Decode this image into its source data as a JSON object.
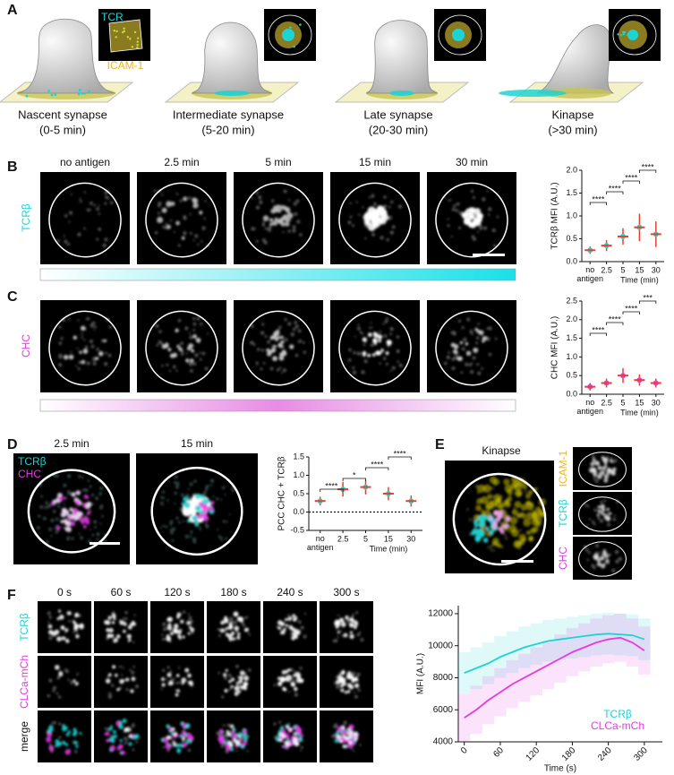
{
  "panel_a": {
    "label": "A",
    "inset_labels": [
      "TCR",
      "ICAM-1"
    ],
    "stages": [
      {
        "name": "Nascent synapse",
        "time": "(0-5 min)"
      },
      {
        "name": "Intermediate synapse",
        "time": "(5-20 min)"
      },
      {
        "name": "Late synapse",
        "time": "(20-30 min)"
      },
      {
        "name": "Kinapse",
        "time": "(>30 min)"
      }
    ]
  },
  "panel_b": {
    "label": "B",
    "row_label": "TCRβ",
    "columns": [
      "no antigen",
      "2.5 min",
      "5 min",
      "15 min",
      "30 min"
    ]
  },
  "panel_c": {
    "label": "C",
    "row_label": "CHC"
  },
  "panel_d": {
    "label": "D",
    "columns": [
      "2.5 min",
      "15 min"
    ],
    "channels": [
      "TCRβ",
      "CHC"
    ]
  },
  "panel_e": {
    "label": "E",
    "title": "Kinapse",
    "channels": [
      "ICAM-1",
      "TCRβ",
      "CHC"
    ]
  },
  "panel_f": {
    "label": "F",
    "columns": [
      "0 s",
      "60 s",
      "120 s",
      "180 s",
      "240 s",
      "300 s"
    ],
    "rows": [
      "TCRβ",
      "CLCa-mCh",
      "merge"
    ]
  },
  "chart_data": [
    {
      "type": "dot",
      "y_label": "TCRβ MFI (A.U.)",
      "x_label": "Time (min)",
      "categories": [
        "no antigen",
        "2.5",
        "5",
        "15",
        "30"
      ],
      "values": [
        0.25,
        0.35,
        0.55,
        0.75,
        0.6
      ],
      "errors": [
        0.08,
        0.12,
        0.18,
        0.3,
        0.28
      ],
      "color": "#e8402c",
      "point_color": "#1ed3d3",
      "ylim": [
        0,
        2
      ],
      "yticks": [
        {
          "value": 0,
          "label": "0.0"
        },
        {
          "value": 0.5,
          "label": "0.5"
        },
        {
          "value": 1,
          "label": "1.0"
        },
        {
          "value": 1.5,
          "label": "1.5"
        },
        {
          "value": 2,
          "label": "2.0"
        }
      ],
      "significance": [
        "****",
        "****",
        "****",
        "****"
      ]
    },
    {
      "type": "dot",
      "y_label": "CHC MFI (A.U.)",
      "x_label": "Time (min)",
      "categories": [
        "no antigen",
        "2.5",
        "5",
        "15",
        "30"
      ],
      "values": [
        0.2,
        0.3,
        0.5,
        0.38,
        0.3
      ],
      "errors": [
        0.1,
        0.12,
        0.2,
        0.15,
        0.12
      ],
      "color": "#e8402c",
      "point_color": "#e33be0",
      "ylim": [
        0,
        2.5
      ],
      "yticks": [
        {
          "value": 0,
          "label": "0.0"
        },
        {
          "value": 0.5,
          "label": "0.5"
        },
        {
          "value": 1,
          "label": "1.0"
        },
        {
          "value": 1.5,
          "label": "1.5"
        },
        {
          "value": 2,
          "label": "2.0"
        },
        {
          "value": 2.5,
          "label": "2.5"
        }
      ],
      "significance": [
        "****",
        "****",
        "****",
        "***"
      ]
    },
    {
      "type": "dot",
      "y_label": "PCC CHC + TCRβ",
      "x_label": "Time (min)",
      "categories": [
        "no antigen",
        "2.5",
        "5",
        "15",
        "30"
      ],
      "values": [
        0.3,
        0.62,
        0.68,
        0.5,
        0.3
      ],
      "errors": [
        0.12,
        0.2,
        0.2,
        0.18,
        0.15
      ],
      "color": "#e8402c",
      "point_color": "#1ed3d3",
      "zero_line": true,
      "ylim": [
        -0.5,
        1.5
      ],
      "yticks": [
        {
          "value": -0.5,
          "label": "-0.5"
        },
        {
          "value": 0,
          "label": "0.0"
        },
        {
          "value": 0.5,
          "label": "0.5"
        },
        {
          "value": 1,
          "label": "1.0"
        },
        {
          "value": 1.5,
          "label": "1.5"
        }
      ],
      "significance": [
        "****",
        "*",
        "****",
        "****"
      ]
    },
    {
      "type": "line",
      "y_label": "MFI (A.U.)",
      "x_label": "Time (s)",
      "legend": "lower right",
      "x": [
        0,
        20,
        40,
        60,
        80,
        100,
        120,
        140,
        160,
        180,
        200,
        220,
        240,
        260,
        280,
        300
      ],
      "xlim": [
        -10,
        330
      ],
      "xticks": [
        0,
        60,
        120,
        180,
        240,
        300
      ],
      "ylim": [
        4000,
        12500
      ],
      "yticks": [
        4000,
        6000,
        8000,
        10000,
        12000
      ],
      "series": [
        {
          "name": "TCRβ",
          "color": "#1ed3d3",
          "values": [
            8300,
            8600,
            8900,
            9300,
            9600,
            9900,
            10100,
            10300,
            10400,
            10500,
            10600,
            10700,
            10750,
            10700,
            10650,
            10400
          ],
          "errors": [
            1300,
            1300,
            1300,
            1300,
            1300,
            1300,
            1300,
            1300,
            1300,
            1300,
            1300,
            1300,
            1300,
            1300,
            1300,
            1300
          ]
        },
        {
          "name": "CLCa-mCh",
          "color": "#e33be0",
          "values": [
            5500,
            6000,
            6600,
            7100,
            7600,
            8000,
            8400,
            8800,
            9200,
            9600,
            9900,
            10200,
            10400,
            10500,
            10200,
            9700
          ],
          "errors": [
            1500,
            1500,
            1500,
            1500,
            1500,
            1500,
            1500,
            1500,
            1500,
            1500,
            1500,
            1500,
            1500,
            1500,
            1500,
            1500
          ]
        }
      ]
    }
  ]
}
